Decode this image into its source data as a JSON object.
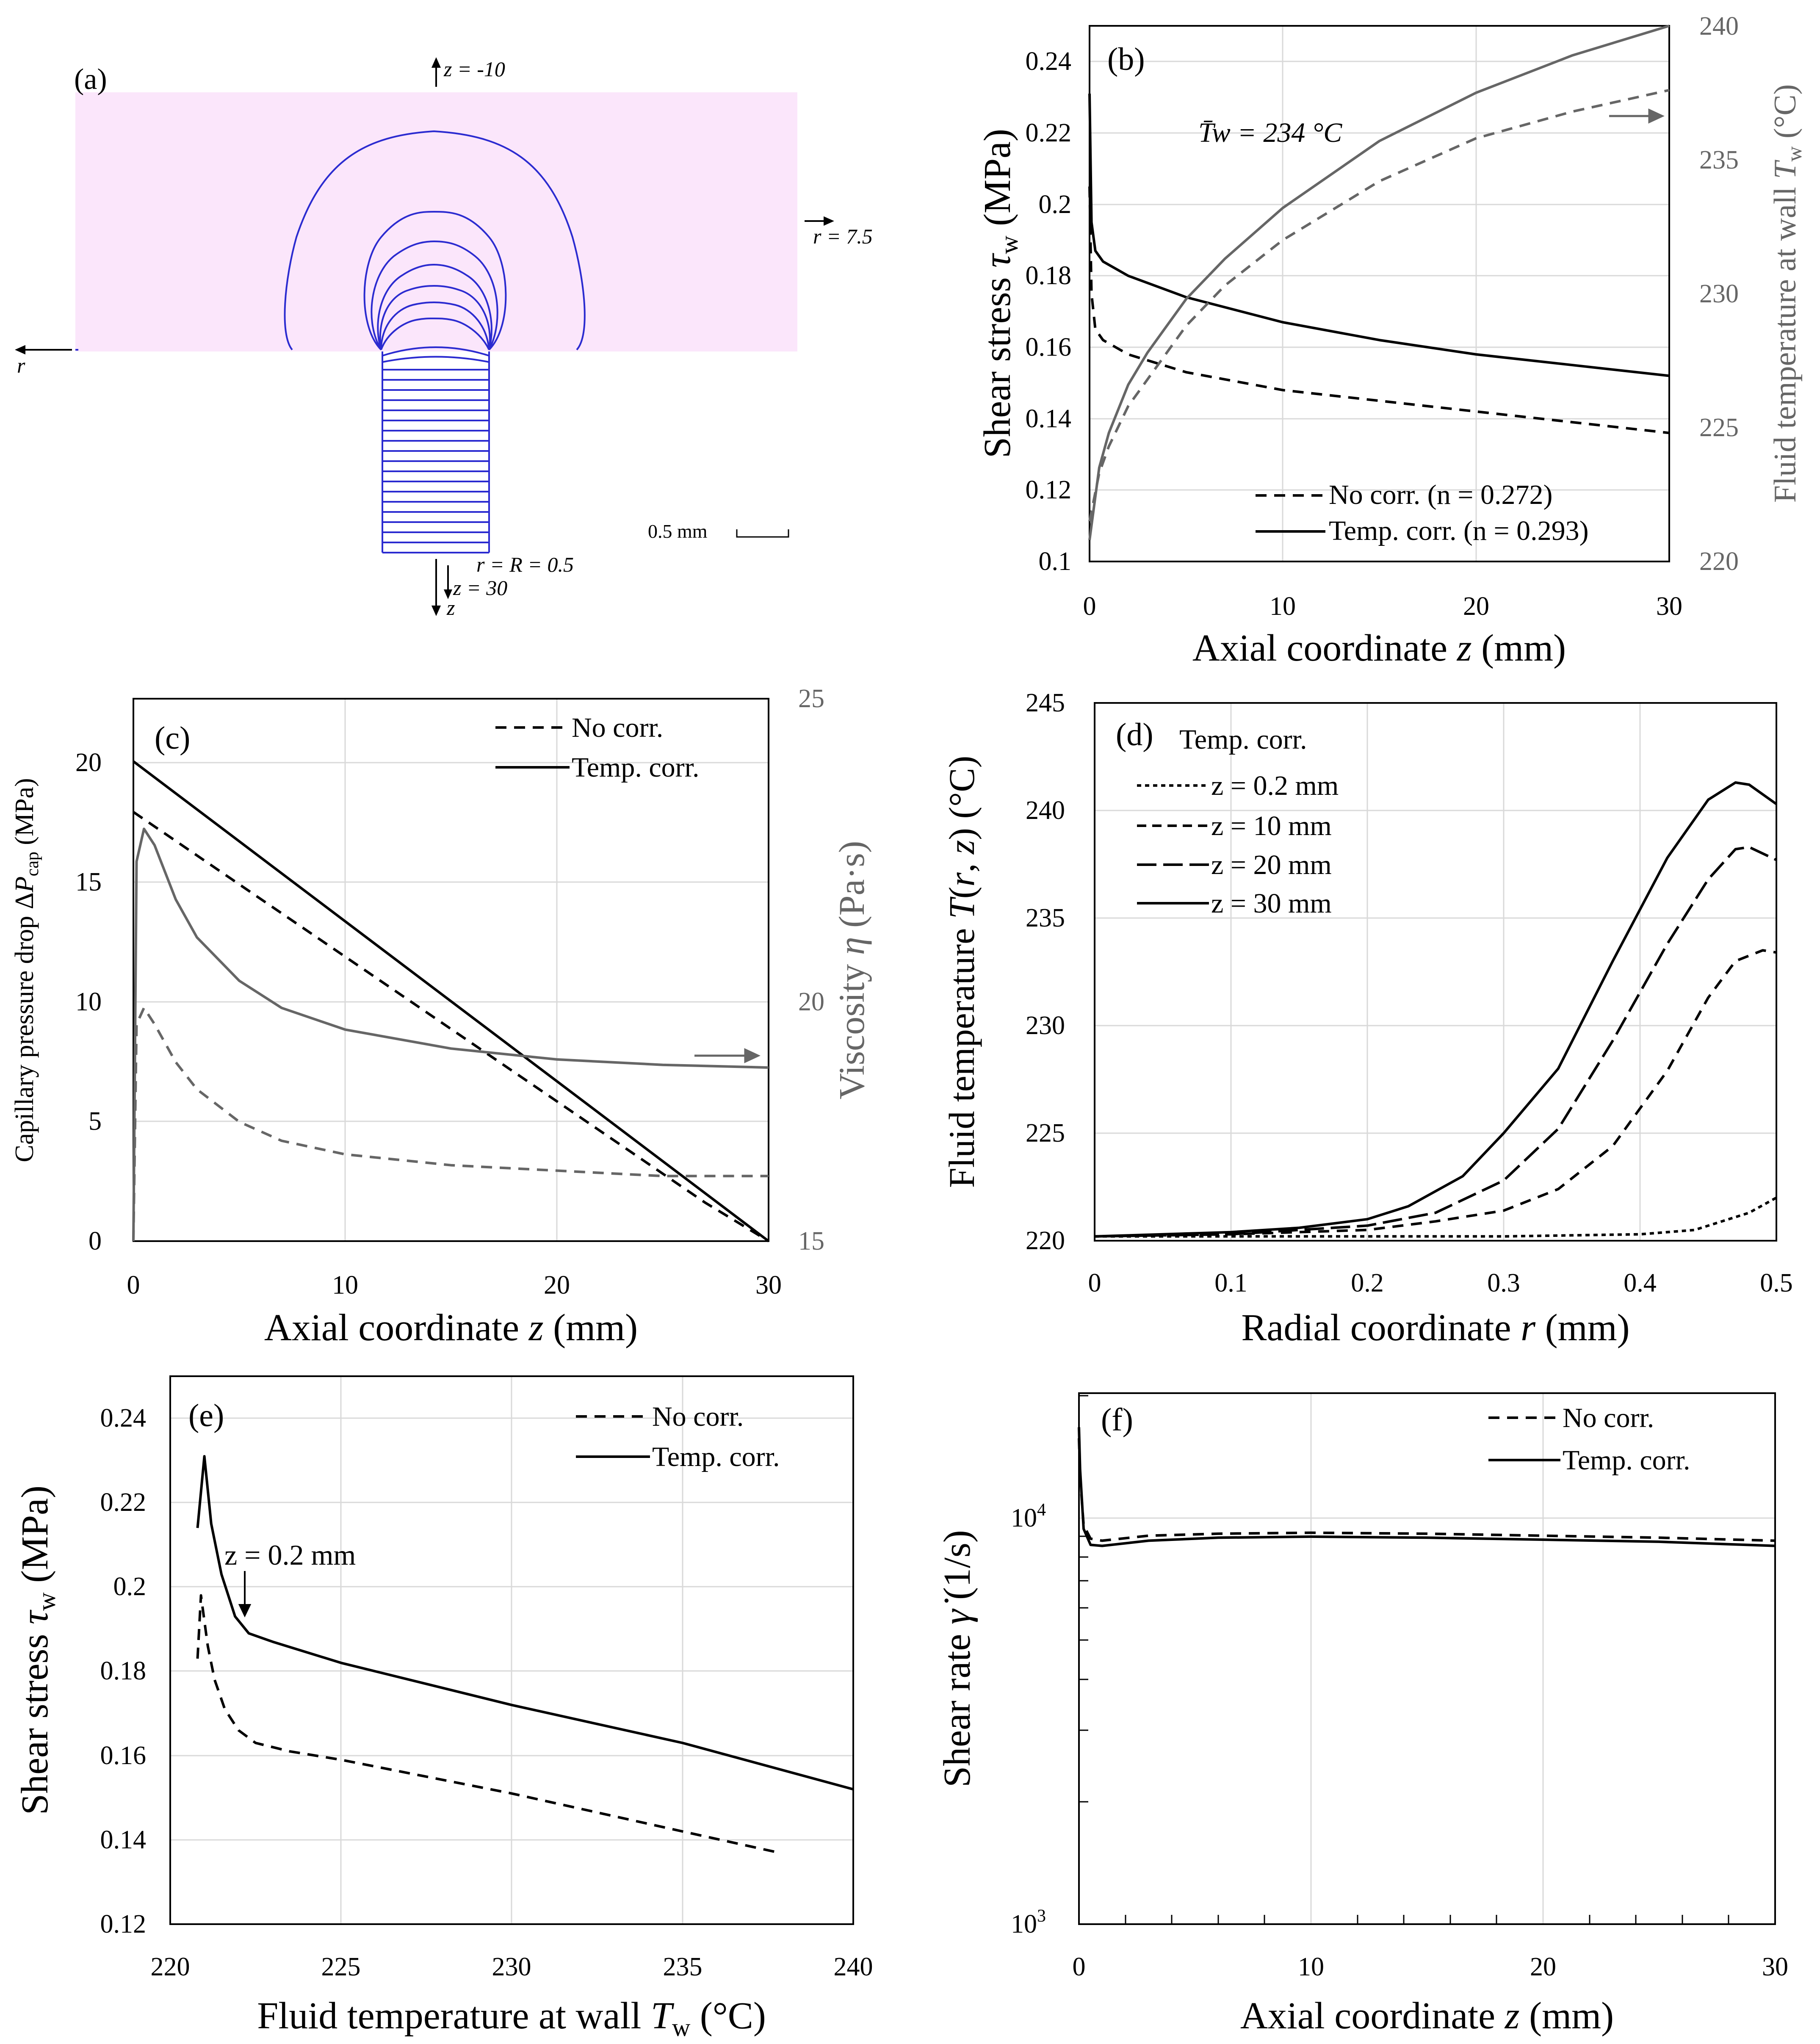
{
  "colors": {
    "black": "#000000",
    "gray": "#666666",
    "grid": "#d9d9d9",
    "pink": "#fbe6fb",
    "blue": "#2b2bd0"
  },
  "panel_a": {
    "label": "(a)",
    "ann_top": "z = -10",
    "ann_right": "r = 7.5",
    "ann_left": "r",
    "ann_R": "r = R = 0.5",
    "ann_z30": "z = 30",
    "ann_z": "z",
    "scale_label": "0.5 mm"
  },
  "panel_b": {
    "label": "(b)",
    "tw_annotation": "T̄w = 234 °C",
    "legend": [
      "No corr. (n = 0.272)",
      "Temp. corr. (n = 0.293)"
    ]
  },
  "panel_c": {
    "label": "(c)",
    "legend": [
      "No corr.",
      "Temp. corr."
    ]
  },
  "panel_d": {
    "label": "(d)",
    "subtitle": "Temp. corr.",
    "legend": [
      "z = 0.2 mm",
      "z = 10 mm",
      "z = 20 mm",
      "z = 30 mm"
    ]
  },
  "panel_e": {
    "label": "(e)",
    "annotation": "z = 0.2 mm",
    "legend": [
      "No corr.",
      "Temp. corr."
    ]
  },
  "panel_f": {
    "label": "(f)",
    "legend": [
      "No corr.",
      "Temp. corr."
    ]
  },
  "chart_data": [
    {
      "id": "b",
      "type": "line",
      "title": "",
      "xlabel": "Axial coordinate z (mm)",
      "ylabel": "Shear stress τw (MPa)",
      "y2label": "Fluid temperature at wall Tw (°C)",
      "xlim": [
        0,
        30
      ],
      "ylim": [
        0.1,
        0.25
      ],
      "y2lim": [
        220,
        240
      ],
      "xticks": [
        0,
        10,
        20,
        30
      ],
      "yticks": [
        0.1,
        0.12,
        0.14,
        0.16,
        0.18,
        0.2,
        0.22,
        0.24
      ],
      "y2ticks": [
        220,
        225,
        230,
        235,
        240
      ],
      "series": [
        {
          "name": "No corr. (n = 0.272)",
          "axis": "y",
          "color": "black",
          "dash": "dash",
          "x": [
            0,
            0.1,
            0.3,
            0.7,
            2,
            5,
            10,
            15,
            20,
            25,
            30
          ],
          "y": [
            0.205,
            0.175,
            0.165,
            0.162,
            0.158,
            0.153,
            0.148,
            0.145,
            0.142,
            0.139,
            0.136
          ]
        },
        {
          "name": "Temp. corr. (n = 0.293)",
          "axis": "y",
          "color": "black",
          "dash": "solid",
          "x": [
            0,
            0.1,
            0.3,
            0.7,
            2,
            5,
            10,
            15,
            20,
            25,
            30
          ],
          "y": [
            0.231,
            0.195,
            0.187,
            0.184,
            0.18,
            0.174,
            0.167,
            0.162,
            0.158,
            0.155,
            0.152
          ]
        },
        {
          "name": "Tw no corr.",
          "axis": "y2",
          "color": "gray",
          "dash": "dash",
          "x": [
            0,
            0.5,
            1,
            2,
            3,
            5,
            7,
            10,
            15,
            20,
            25,
            30
          ],
          "y": [
            221.5,
            223.3,
            224.3,
            225.8,
            226.8,
            228.8,
            230.3,
            232.0,
            234.2,
            235.8,
            236.8,
            237.6
          ]
        },
        {
          "name": "Tw temp. corr.",
          "axis": "y2",
          "color": "gray",
          "dash": "solid",
          "x": [
            0,
            0.5,
            1,
            2,
            3,
            5,
            7,
            10,
            15,
            20,
            25,
            30
          ],
          "y": [
            220.8,
            223.5,
            224.8,
            226.6,
            227.8,
            229.8,
            231.3,
            233.2,
            235.7,
            237.5,
            238.9,
            240.0
          ]
        }
      ]
    },
    {
      "id": "c",
      "type": "line",
      "xlabel": "Axial coordinate z (mm)",
      "ylabel": "Capillary pressure drop ΔPcap (MPa)",
      "y2label": "Viscosity η (Pa·s)",
      "xlim": [
        0,
        30
      ],
      "ylim": [
        0,
        22.5
      ],
      "y2lim": [
        15,
        25
      ],
      "xticks": [
        0,
        10,
        20,
        30
      ],
      "yticks": [
        0,
        5,
        10,
        15,
        20
      ],
      "y2ticks": [
        15,
        20,
        25
      ],
      "series": [
        {
          "name": "No corr.",
          "axis": "y",
          "color": "black",
          "dash": "dash",
          "x": [
            0,
            27,
            30
          ],
          "y": [
            17.8,
            1.6,
            0
          ]
        },
        {
          "name": "Temp. corr.",
          "axis": "y",
          "color": "black",
          "dash": "solid",
          "x": [
            0,
            30
          ],
          "y": [
            19.9,
            0
          ]
        },
        {
          "name": "η temp. corr.",
          "axis": "y2",
          "color": "gray",
          "dash": "solid",
          "x": [
            0,
            0.15,
            0.5,
            1,
            2,
            3,
            5,
            7,
            10,
            15,
            20,
            25,
            30
          ],
          "y": [
            15,
            22,
            22.6,
            22.3,
            21.3,
            20.6,
            19.8,
            19.3,
            18.9,
            18.55,
            18.35,
            18.25,
            18.2
          ]
        },
        {
          "name": "η no corr.",
          "axis": "y2",
          "color": "gray",
          "dash": "dash",
          "x": [
            0,
            0.15,
            0.5,
            1,
            2,
            3,
            5,
            7,
            10,
            15,
            20,
            25,
            30
          ],
          "y": [
            15,
            19,
            19.3,
            19.0,
            18.3,
            17.8,
            17.2,
            16.85,
            16.6,
            16.4,
            16.3,
            16.2,
            16.2
          ]
        }
      ]
    },
    {
      "id": "d",
      "type": "line",
      "xlabel": "Radial coordinate r (mm)",
      "ylabel": "Fluid temperature T(r, z) (°C)",
      "xlim": [
        0,
        0.5
      ],
      "ylim": [
        220,
        245
      ],
      "xticks": [
        0,
        0.1,
        0.2,
        0.3,
        0.4,
        0.5
      ],
      "yticks": [
        220,
        225,
        230,
        235,
        240,
        245
      ],
      "series": [
        {
          "name": "z = 0.2 mm",
          "dash": "dot",
          "x": [
            0,
            0.1,
            0.2,
            0.3,
            0.35,
            0.4,
            0.44,
            0.46,
            0.48,
            0.5
          ],
          "y": [
            220.2,
            220.2,
            220.2,
            220.2,
            220.25,
            220.3,
            220.5,
            220.9,
            221.3,
            222.0
          ]
        },
        {
          "name": "z = 10 mm",
          "dash": "dash",
          "x": [
            0,
            0.1,
            0.2,
            0.25,
            0.3,
            0.34,
            0.38,
            0.42,
            0.45,
            0.47,
            0.49,
            0.5
          ],
          "y": [
            220.2,
            220.3,
            220.5,
            220.9,
            221.4,
            222.4,
            224.4,
            227.9,
            231.3,
            233.0,
            233.5,
            233.4
          ]
        },
        {
          "name": "z = 20 mm",
          "dash": "longdash",
          "x": [
            0,
            0.1,
            0.2,
            0.25,
            0.3,
            0.34,
            0.38,
            0.42,
            0.45,
            0.47,
            0.48,
            0.5
          ],
          "y": [
            220.2,
            220.3,
            220.7,
            221.3,
            222.8,
            225.2,
            229.3,
            233.8,
            236.8,
            238.2,
            238.3,
            237.7
          ]
        },
        {
          "name": "z = 30 mm",
          "dash": "solid",
          "x": [
            0,
            0.1,
            0.15,
            0.2,
            0.23,
            0.27,
            0.3,
            0.34,
            0.38,
            0.42,
            0.45,
            0.47,
            0.48,
            0.5
          ],
          "y": [
            220.2,
            220.4,
            220.6,
            221.0,
            221.6,
            223.0,
            225.0,
            228.0,
            233.0,
            237.8,
            240.5,
            241.3,
            241.2,
            240.3
          ]
        }
      ]
    },
    {
      "id": "e",
      "type": "line",
      "xlabel": "Fluid temperature at wall Tw (°C)",
      "ylabel": "Shear stress τw (MPa)",
      "xlim": [
        220,
        240
      ],
      "ylim": [
        0.12,
        0.25
      ],
      "xticks": [
        220,
        225,
        230,
        235,
        240
      ],
      "yticks": [
        0.12,
        0.14,
        0.16,
        0.18,
        0.2,
        0.22,
        0.24
      ],
      "series": [
        {
          "name": "No corr.",
          "dash": "dash",
          "x": [
            220.8,
            220.9,
            221.0,
            221.1,
            221.3,
            221.6,
            222.0,
            222.5,
            223.5,
            225,
            230,
            235,
            237.8
          ],
          "y": [
            0.183,
            0.198,
            0.192,
            0.186,
            0.178,
            0.171,
            0.166,
            0.163,
            0.161,
            0.159,
            0.151,
            0.142,
            0.137
          ]
        },
        {
          "name": "Temp. corr.",
          "dash": "solid",
          "x": [
            220.8,
            221.0,
            221.2,
            221.5,
            221.9,
            222.3,
            223,
            225,
            230,
            235,
            240
          ],
          "y": [
            0.214,
            0.231,
            0.215,
            0.203,
            0.193,
            0.189,
            0.187,
            0.182,
            0.172,
            0.163,
            0.152
          ]
        }
      ]
    },
    {
      "id": "f",
      "type": "line",
      "yscale": "log",
      "xlabel": "Axial coordinate z (mm)",
      "ylabel": "Shear rate γ̇ (1/s)",
      "xlim": [
        0,
        30
      ],
      "ylim": [
        1000,
        20000
      ],
      "xticks": [
        0,
        10,
        20,
        30
      ],
      "yticks": [
        1000,
        10000
      ],
      "series": [
        {
          "name": "No corr.",
          "dash": "dash",
          "x": [
            0,
            0.05,
            0.2,
            0.5,
            1,
            3,
            6,
            10,
            15,
            20,
            25,
            30
          ],
          "y": [
            15500,
            12500,
            9500,
            8800,
            8700,
            8950,
            9050,
            9100,
            9050,
            8950,
            8850,
            8700
          ]
        },
        {
          "name": "Temp. corr.",
          "dash": "solid",
          "x": [
            0,
            0.05,
            0.2,
            0.5,
            1,
            3,
            6,
            10,
            15,
            20,
            25,
            30
          ],
          "y": [
            16500,
            13000,
            9300,
            8500,
            8450,
            8700,
            8850,
            8900,
            8850,
            8750,
            8650,
            8450
          ]
        }
      ]
    }
  ]
}
